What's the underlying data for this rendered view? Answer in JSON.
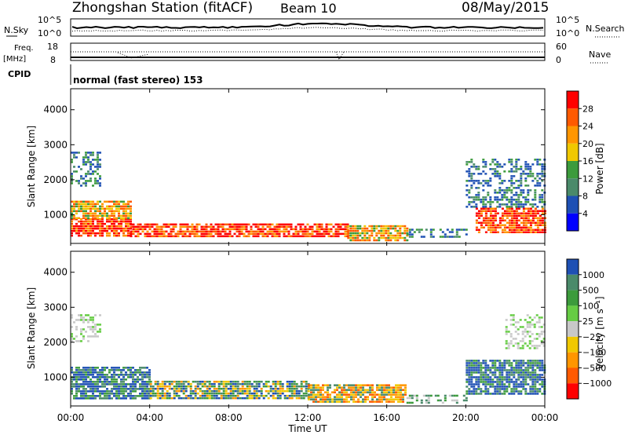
{
  "header": {
    "station": "Zhongshan Station (fitACF)",
    "beam": "Beam 10",
    "date": "08/May/2015"
  },
  "noise_panel": {
    "left_label": "N.Sky",
    "right_label": "N.Search",
    "left_ticks": [
      "10^5",
      "10^0"
    ],
    "right_ticks": [
      "10^5",
      "10^0"
    ]
  },
  "freq_panel": {
    "left_label_line1": "Freq.",
    "left_label_line2": "[MHz]",
    "right_label": "Nave",
    "left_ticks": [
      "18",
      "8"
    ],
    "right_ticks": [
      "60",
      "0"
    ]
  },
  "cpid": {
    "label": "CPID",
    "mode_text": "normal (fast stereo) 153"
  },
  "chart_data": [
    {
      "type": "heatmap",
      "quantity": "power",
      "ylabel": "Slant Range [km]",
      "xlabel": "Time UT",
      "ylim": [
        180,
        4600
      ],
      "yticks": [
        "1000",
        "2000",
        "3000",
        "4000"
      ],
      "xlim_hours": [
        0,
        24
      ],
      "colorbar": {
        "label": "Power [dB]",
        "ticks": [
          "28",
          "24",
          "20",
          "16",
          "12",
          "8",
          "4"
        ],
        "colors": [
          "#ff0000",
          "#ff5a00",
          "#ff9600",
          "#f0c800",
          "#3c9b3c",
          "#4a8a6a",
          "#1e50b4",
          "#0000ff"
        ]
      },
      "regions": [
        {
          "t": [
            0.0,
            3.0
          ],
          "r": [
            400,
            900
          ],
          "level": "strong"
        },
        {
          "t": [
            3.0,
            14.0
          ],
          "r": [
            350,
            750
          ],
          "level": "strong"
        },
        {
          "t": [
            0.0,
            3.0
          ],
          "r": [
            900,
            1400
          ],
          "level": "medium"
        },
        {
          "t": [
            0.0,
            1.5
          ],
          "r": [
            1800,
            2800
          ],
          "level": "weak"
        },
        {
          "t": [
            14.0,
            17.0
          ],
          "r": [
            250,
            700
          ],
          "level": "medium"
        },
        {
          "t": [
            17.0,
            20.0
          ],
          "r": [
            350,
            600
          ],
          "level": "weak"
        },
        {
          "t": [
            20.5,
            24.0
          ],
          "r": [
            500,
            1200
          ],
          "level": "strong"
        },
        {
          "t": [
            20.0,
            24.0
          ],
          "r": [
            1200,
            2600
          ],
          "level": "weak"
        }
      ]
    },
    {
      "type": "heatmap",
      "quantity": "velocity",
      "ylabel": "Slant Range [km]",
      "xlabel": "Time UT",
      "ylim": [
        180,
        4600
      ],
      "yticks": [
        "1000",
        "2000",
        "3000",
        "4000"
      ],
      "xlim_hours": [
        0,
        24
      ],
      "colorbar": {
        "label": "Velocity [m s⁻¹]",
        "ticks": [
          "1000",
          "500",
          "100",
          "25",
          "−25",
          "−100",
          "−500",
          "−1000"
        ],
        "colors": [
          "#1e50b4",
          "#4a8a6a",
          "#3c9b3c",
          "#66cc44",
          "#c8c8c8",
          "#f0c800",
          "#ff9600",
          "#ff5a00",
          "#ff0000"
        ]
      },
      "regions": [
        {
          "t": [
            0.0,
            4.0
          ],
          "r": [
            400,
            1300
          ],
          "level": "toward"
        },
        {
          "t": [
            4.0,
            12.0
          ],
          "r": [
            400,
            900
          ],
          "level": "mixed"
        },
        {
          "t": [
            12.0,
            17.0
          ],
          "r": [
            300,
            800
          ],
          "level": "away"
        },
        {
          "t": [
            17.0,
            20.0
          ],
          "r": [
            250,
            500
          ],
          "level": "weak"
        },
        {
          "t": [
            20.0,
            24.0
          ],
          "r": [
            500,
            1500
          ],
          "level": "toward"
        },
        {
          "t": [
            0.0,
            1.5
          ],
          "r": [
            2000,
            2800
          ],
          "level": "zero"
        },
        {
          "t": [
            22.0,
            24.0
          ],
          "r": [
            1800,
            2800
          ],
          "level": "zero"
        }
      ]
    }
  ],
  "time_axis": {
    "ticks": [
      "00:00",
      "04:00",
      "08:00",
      "12:00",
      "16:00",
      "20:00",
      "00:00"
    ],
    "label": "Time UT"
  }
}
